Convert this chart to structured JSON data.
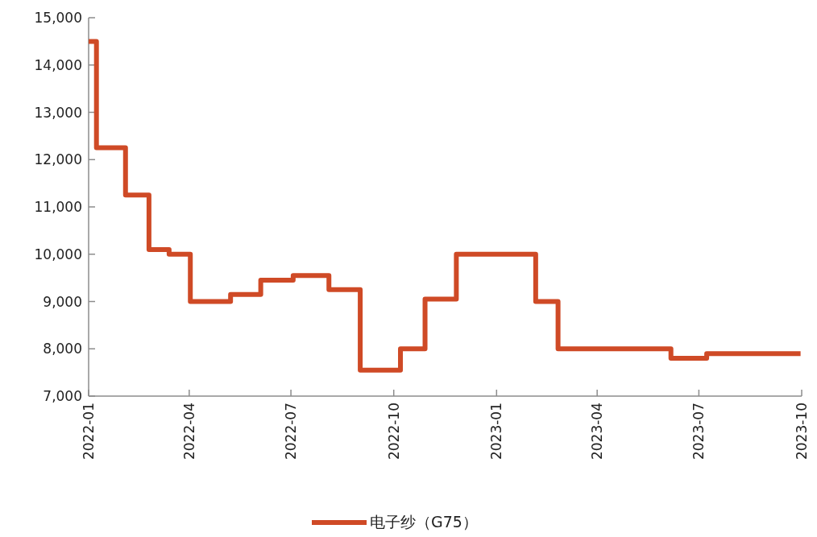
{
  "chart_data": {
    "type": "step",
    "x": [
      "2022-01-01",
      "2022-01-08",
      "2022-02-03",
      "2022-02-24",
      "2022-03-14",
      "2022-04-02",
      "2022-05-08",
      "2022-06-04",
      "2022-07-03",
      "2022-08-04",
      "2022-09-01",
      "2022-10-07",
      "2022-10-29",
      "2022-11-26",
      "2023-02-05",
      "2023-02-25",
      "2023-06-06",
      "2023-07-08",
      "2023-09-30"
    ],
    "series": [
      {
        "name": "电子纱（G75）",
        "color": "#cf4a26",
        "values": [
          14500,
          12250,
          11250,
          10100,
          10000,
          9000,
          9150,
          9450,
          9550,
          9250,
          7550,
          8000,
          9050,
          10000,
          9000,
          8000,
          7800,
          7900,
          7900
        ]
      }
    ],
    "xlim": [
      "2022-01-01",
      "2023-10-01"
    ],
    "xticks": [
      "2022-01",
      "2022-04",
      "2022-07",
      "2022-10",
      "2023-01",
      "2023-04",
      "2023-07",
      "2023-10"
    ],
    "ylim": [
      7000,
      15000
    ],
    "yticks": [
      {
        "value": 7000,
        "label": "7,000"
      },
      {
        "value": 8000,
        "label": "8,000"
      },
      {
        "value": 9000,
        "label": "9,000"
      },
      {
        "value": 10000,
        "label": "10,000"
      },
      {
        "value": 11000,
        "label": "11,000"
      },
      {
        "value": 12000,
        "label": "12,000"
      },
      {
        "value": 13000,
        "label": "13,000"
      },
      {
        "value": 14000,
        "label": "14,000"
      },
      {
        "value": 15000,
        "label": "15,000"
      }
    ],
    "legend": "bottom",
    "line_style": "solid",
    "marker": "none"
  }
}
